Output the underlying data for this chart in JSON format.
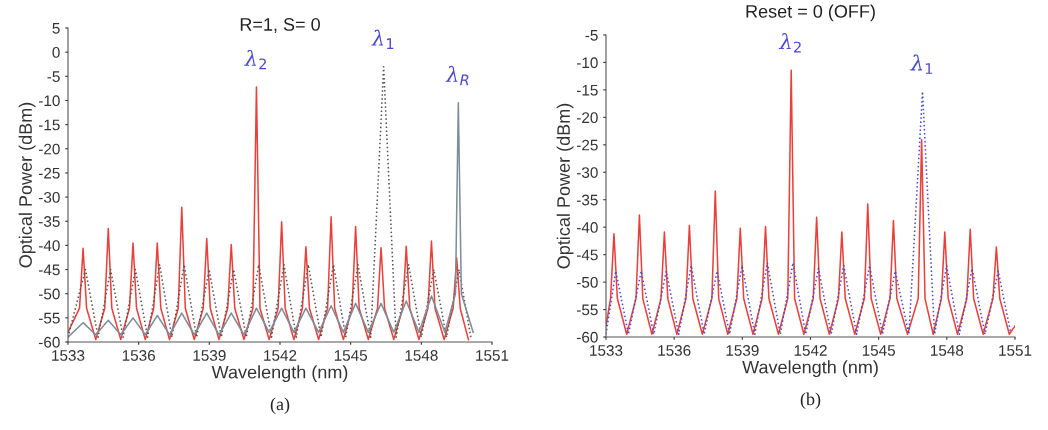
{
  "chart_data": [
    {
      "type": "line",
      "title": "R=1, S= 0",
      "xlabel": "Wavelength (nm)",
      "ylabel": "Optical Power (dBm)",
      "xlim": [
        1533,
        1551
      ],
      "xticks": [
        1533,
        1536,
        1539,
        1542,
        1545,
        1548,
        1551
      ],
      "ylim": [
        -60,
        5
      ],
      "yticks": [
        5,
        0,
        -5,
        -10,
        -15,
        -20,
        -25,
        -30,
        -35,
        -40,
        -45,
        -50,
        -55,
        -60
      ],
      "grid": false,
      "legend": false,
      "series": [
        {
          "color": "#e8413c",
          "line_style": "solid",
          "x": [
            1533.0,
            1533.49,
            1533.64,
            1533.79,
            1534.18,
            1534.56,
            1534.71,
            1534.86,
            1535.24,
            1535.61,
            1535.76,
            1535.91,
            1536.28,
            1536.64,
            1536.79,
            1536.94,
            1537.31,
            1537.68,
            1537.83,
            1537.98,
            1538.36,
            1538.74,
            1538.89,
            1539.04,
            1539.41,
            1539.78,
            1539.93,
            1540.08,
            1540.47,
            1540.85,
            1541.0,
            1541.15,
            1541.54,
            1541.92,
            1542.07,
            1542.22,
            1542.59,
            1542.95,
            1543.1,
            1543.25,
            1543.64,
            1544.02,
            1544.17,
            1544.32,
            1544.69,
            1545.06,
            1545.21,
            1545.36,
            1545.75,
            1546.14,
            1546.29,
            1546.44,
            1546.83,
            1547.21,
            1547.36,
            1547.51,
            1547.9,
            1548.28,
            1548.43,
            1548.58,
            1548.97,
            1549.35,
            1549.5,
            1549.65,
            1550.0
          ],
          "values": [
            -58,
            -53,
            -40.6,
            -53,
            -59.5,
            -53,
            -36.5,
            -53,
            -59.5,
            -53,
            -39.5,
            -53,
            -59.5,
            -53,
            -39.5,
            -53,
            -59.5,
            -53,
            -32.1,
            -53,
            -59.5,
            -53,
            -38.6,
            -53,
            -59.5,
            -53,
            -39.8,
            -53,
            -59.5,
            -53,
            -7.2,
            -53,
            -59.5,
            -53,
            -35.1,
            -53,
            -59.5,
            -53,
            -40.3,
            -53,
            -59.5,
            -53,
            -34.1,
            -53,
            -59.5,
            -53,
            -36.1,
            -53,
            -59.5,
            -53,
            -40.5,
            -53,
            -59.5,
            -53,
            -40.2,
            -53,
            -59.5,
            -53,
            -39.1,
            -53,
            -59.5,
            -53,
            -42.6,
            -53,
            -59.5
          ]
        },
        {
          "color": "#555555",
          "line_style": "dotted",
          "x": [
            1533.0,
            1533.74,
            1534.28,
            1534.81,
            1535.34,
            1535.86,
            1536.38,
            1536.89,
            1537.41,
            1537.93,
            1538.46,
            1538.99,
            1539.51,
            1540.03,
            1540.57,
            1541.1,
            1541.64,
            1542.17,
            1542.69,
            1543.2,
            1543.74,
            1544.27,
            1544.79,
            1545.31,
            1545.85,
            1546.4,
            1546.93,
            1547.46,
            1548.0,
            1548.53,
            1549.07,
            1549.6,
            1550.1
          ],
          "values": [
            -59,
            -45,
            -59,
            -45,
            -59,
            -45,
            -59,
            -44,
            -59,
            -44,
            -59,
            -45,
            -59,
            -45,
            -59,
            -44,
            -59,
            -44,
            -59,
            -44,
            -59,
            -44,
            -59,
            -44,
            -59,
            -3,
            -59,
            -44,
            -59,
            -45,
            -59,
            -45,
            -59
          ]
        },
        {
          "color": "#7f8c99",
          "line_style": "solid",
          "x": [
            1533.0,
            1533.64,
            1534.18,
            1534.71,
            1535.24,
            1535.76,
            1536.28,
            1536.79,
            1537.31,
            1537.83,
            1538.36,
            1538.89,
            1539.41,
            1539.93,
            1540.47,
            1541.0,
            1541.54,
            1542.07,
            1542.59,
            1543.1,
            1543.64,
            1544.17,
            1544.69,
            1545.21,
            1545.75,
            1546.29,
            1546.83,
            1547.36,
            1547.9,
            1548.43,
            1549.0,
            1549.45,
            1549.57,
            1549.7,
            1550.2
          ],
          "values": [
            -59,
            -56,
            -58.5,
            -55.5,
            -58.5,
            -55,
            -58.5,
            -54.5,
            -58.5,
            -54,
            -58.5,
            -54,
            -58.5,
            -54,
            -58.5,
            -53,
            -58,
            -53,
            -58,
            -53,
            -58,
            -52.5,
            -58,
            -52,
            -58,
            -52,
            -58,
            -51.5,
            -58,
            -50.5,
            -58,
            -50,
            -10.5,
            -50,
            -58
          ]
        }
      ],
      "annotations": [
        {
          "text": "λ$_{2}$",
          "x": 1541.0,
          "y": -7.2
        },
        {
          "text": "λ$_{1}$",
          "x": 1546.4,
          "y": -3
        },
        {
          "text": "λ$_{R}$",
          "x": 1549.57,
          "y": -10.5
        },
        "(a)"
      ]
    },
    {
      "type": "line",
      "title": "Reset = 0 (OFF)",
      "xlabel": "Wavelength (nm)",
      "ylabel": "Optical Power (dBm)",
      "xlim": [
        1533,
        1551
      ],
      "xticks": [
        1533,
        1536,
        1539,
        1542,
        1545,
        1548,
        1551
      ],
      "ylim": [
        -60,
        -5
      ],
      "yticks": [
        -5,
        -10,
        -15,
        -20,
        -25,
        -30,
        -35,
        -40,
        -45,
        -50,
        -55,
        -60
      ],
      "grid": false,
      "legend": false,
      "series": [
        {
          "color": "#e8413c",
          "line_style": "solid",
          "x": [
            1533.0,
            1533.2,
            1533.35,
            1533.5,
            1533.91,
            1534.32,
            1534.47,
            1534.62,
            1535.02,
            1535.42,
            1535.57,
            1535.72,
            1536.12,
            1536.52,
            1536.67,
            1536.82,
            1537.24,
            1537.66,
            1537.81,
            1537.96,
            1538.36,
            1538.76,
            1538.91,
            1539.06,
            1539.47,
            1539.87,
            1540.02,
            1540.17,
            1540.59,
            1541.0,
            1541.15,
            1541.3,
            1541.71,
            1542.12,
            1542.27,
            1542.42,
            1542.83,
            1543.23,
            1543.38,
            1543.53,
            1543.95,
            1544.37,
            1544.52,
            1544.67,
            1545.09,
            1545.5,
            1545.65,
            1545.8,
            1546.27,
            1546.74,
            1546.89,
            1547.04,
            1547.4,
            1547.76,
            1547.91,
            1548.06,
            1548.47,
            1548.88,
            1549.03,
            1549.18,
            1549.6,
            1550.03,
            1550.18,
            1550.33,
            1550.75,
            1551.0
          ],
          "values": [
            -58,
            -53,
            -41.2,
            -53,
            -59.5,
            -53,
            -37.8,
            -53,
            -59.5,
            -53,
            -40.9,
            -53,
            -59.5,
            -53,
            -39.7,
            -53,
            -59.5,
            -53,
            -33.4,
            -53,
            -59.5,
            -53,
            -40.2,
            -53,
            -59.5,
            -53,
            -39.9,
            -53,
            -59.5,
            -53,
            -11.4,
            -53,
            -59.5,
            -53,
            -38.2,
            -53,
            -59.5,
            -53,
            -40.9,
            -53,
            -59.5,
            -53,
            -35.8,
            -53,
            -59.5,
            -53,
            -38.8,
            -53,
            -59.5,
            -53,
            -24.1,
            -53,
            -59.5,
            -53,
            -40.9,
            -53,
            -59.5,
            -53,
            -40.4,
            -53,
            -59.5,
            -53,
            -43.6,
            -53,
            -59.5,
            -58
          ]
        },
        {
          "color": "#4a4acc",
          "line_style": "dotted",
          "x": [
            1533.0,
            1533.43,
            1533.99,
            1534.55,
            1535.1,
            1535.65,
            1536.2,
            1536.75,
            1537.32,
            1537.89,
            1538.44,
            1538.99,
            1539.55,
            1540.1,
            1540.67,
            1541.23,
            1541.79,
            1542.35,
            1542.91,
            1543.46,
            1544.03,
            1544.6,
            1545.17,
            1545.73,
            1546.33,
            1546.93,
            1547.46,
            1547.99,
            1548.55,
            1549.11,
            1549.68,
            1550.26,
            1550.8
          ],
          "values": [
            -59.5,
            -48,
            -59.5,
            -48,
            -59.5,
            -48,
            -59.5,
            -47,
            -59.5,
            -48,
            -59.5,
            -47,
            -59.5,
            -46.5,
            -59.5,
            -46.5,
            -59.5,
            -47.5,
            -59.5,
            -47,
            -59.5,
            -47,
            -59.5,
            -48,
            -59.5,
            -15.3,
            -59.5,
            -47,
            -59.5,
            -47.5,
            -59.5,
            -48,
            -59
          ]
        }
      ],
      "annotations": [
        {
          "text": "λ$_{2}$",
          "x": 1541.15,
          "y": -11.4
        },
        {
          "text": "λ$_{1}$",
          "x": 1546.93,
          "y": -15.3
        },
        "(b)"
      ]
    }
  ]
}
